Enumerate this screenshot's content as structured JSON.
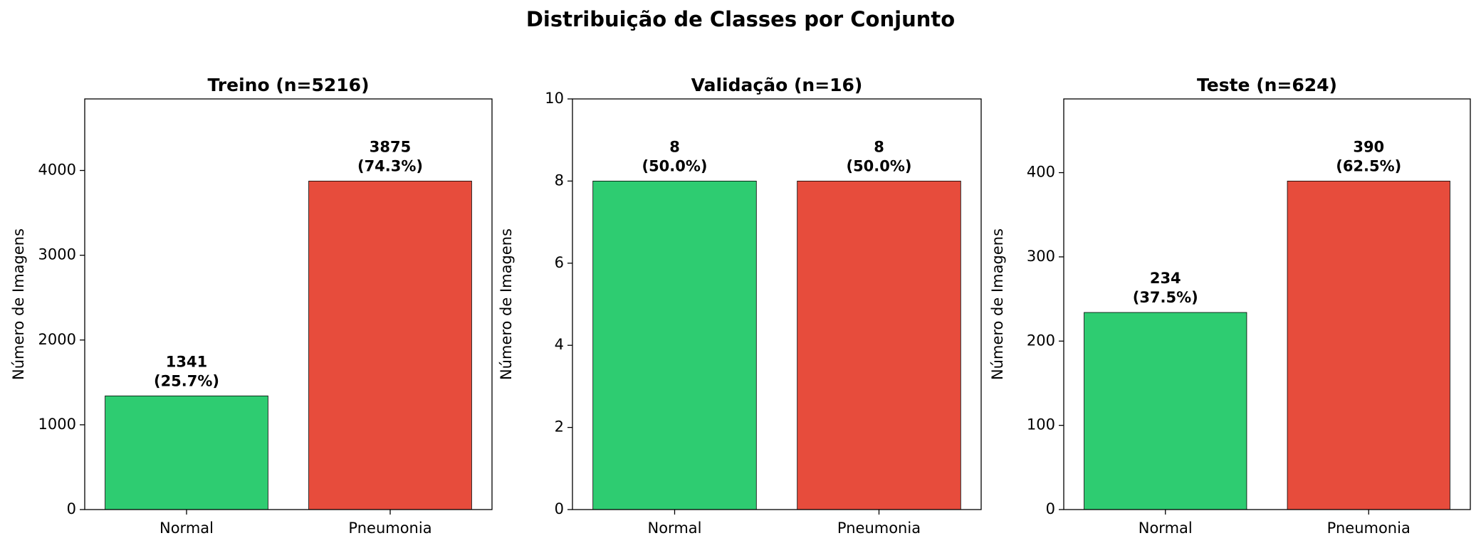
{
  "title": "Distribuição de Classes por Conjunto",
  "chart_data": [
    {
      "type": "bar",
      "title": "Treino (n=5216)",
      "ylabel": "Número de Imagens",
      "categories": [
        "Normal",
        "Pneumonia"
      ],
      "values": [
        1341,
        3875
      ],
      "value_labels": [
        "1341\n(25.7%)",
        "3875\n(74.3%)"
      ],
      "colors": [
        "#2ecc71",
        "#e74c3c"
      ],
      "ylim": [
        0,
        4843.75
      ],
      "yticks": [
        0,
        1000,
        2000,
        3000,
        4000
      ],
      "grid": false
    },
    {
      "type": "bar",
      "title": "Validação (n=16)",
      "ylabel": "Número de Imagens",
      "categories": [
        "Normal",
        "Pneumonia"
      ],
      "values": [
        8,
        8
      ],
      "value_labels": [
        "8\n(50.0%)",
        "8\n(50.0%)"
      ],
      "colors": [
        "#2ecc71",
        "#e74c3c"
      ],
      "ylim": [
        0,
        10
      ],
      "yticks": [
        0,
        2,
        4,
        6,
        8,
        10
      ],
      "grid": false
    },
    {
      "type": "bar",
      "title": "Teste (n=624)",
      "ylabel": "Número de Imagens",
      "categories": [
        "Normal",
        "Pneumonia"
      ],
      "values": [
        234,
        390
      ],
      "value_labels": [
        "234\n(37.5%)",
        "390\n(62.5%)"
      ],
      "colors": [
        "#2ecc71",
        "#e74c3c"
      ],
      "ylim": [
        0,
        487.5
      ],
      "yticks": [
        0,
        100,
        200,
        300,
        400
      ],
      "grid": false
    }
  ]
}
